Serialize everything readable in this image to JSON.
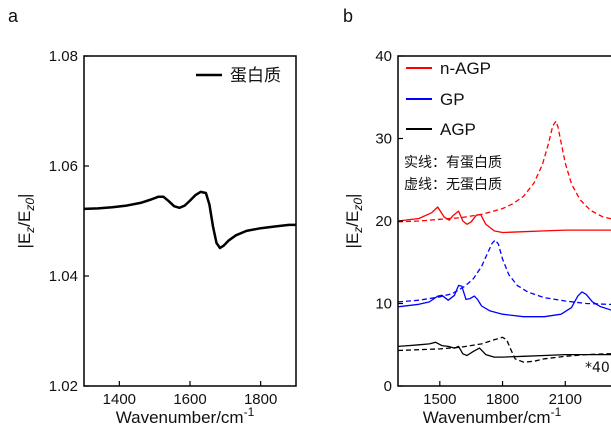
{
  "chart_data": [
    {
      "panel_label": "a",
      "type": "line",
      "xlabel": "Wavenumber/cm",
      "xlabel_sup": "-1",
      "ylabel": {
        "base1": "|E",
        "sub1": "z",
        "slash": "/E",
        "sub2": "z0",
        "end": "|"
      },
      "xlim": [
        1300,
        1900
      ],
      "ylim": [
        1.02,
        1.08
      ],
      "xticks": [
        1400,
        1600,
        1800
      ],
      "xtick_labels": [
        "1400",
        "1600",
        "1800"
      ],
      "yticks": [
        1.02,
        1.04,
        1.06,
        1.08
      ],
      "ytick_labels": [
        "1.02",
        "1.04",
        "1.06",
        "1.08"
      ],
      "legend_placement": "top-right",
      "series": [
        {
          "name": "蛋白质",
          "color": "#000000",
          "style": "solid",
          "x": [
            1300,
            1340,
            1380,
            1420,
            1460,
            1490,
            1510,
            1525,
            1540,
            1555,
            1570,
            1585,
            1600,
            1615,
            1630,
            1645,
            1655,
            1665,
            1675,
            1685,
            1695,
            1710,
            1730,
            1760,
            1800,
            1840,
            1880,
            1900
          ],
          "y": [
            1.0522,
            1.0523,
            1.0525,
            1.0528,
            1.0533,
            1.0539,
            1.0544,
            1.0544,
            1.0536,
            1.0527,
            1.0524,
            1.0528,
            1.0537,
            1.0547,
            1.0553,
            1.0551,
            1.053,
            1.049,
            1.046,
            1.0451,
            1.0455,
            1.0465,
            1.0474,
            1.0482,
            1.0487,
            1.049,
            1.0493,
            1.0493
          ]
        }
      ]
    },
    {
      "panel_label": "b",
      "type": "line",
      "xlabel": "Wavenumber/cm",
      "xlabel_sup": "-1",
      "ylabel": {
        "base1": "|E",
        "sub1": "z",
        "slash": "/E",
        "sub2": "z0",
        "end": "|"
      },
      "xlim": [
        1300,
        2400
      ],
      "ylim": [
        0,
        40
      ],
      "xticks": [
        1500,
        1800,
        2100
      ],
      "xtick_labels": [
        "1500",
        "1800",
        "2100"
      ],
      "yticks": [
        0,
        10,
        20,
        30,
        40
      ],
      "ytick_labels": [
        "0",
        "10",
        "20",
        "30",
        "40"
      ],
      "legend_placement": "top-left",
      "annotations": [
        "实线：有蛋白质",
        "虚线：无蛋白质",
        "*40"
      ],
      "series": [
        {
          "name": "n-AGP",
          "color": "#ff0000",
          "style": "solid",
          "x": [
            1300,
            1400,
            1460,
            1490,
            1520,
            1545,
            1565,
            1590,
            1610,
            1630,
            1650,
            1675,
            1695,
            1720,
            1760,
            1800,
            1900,
            2000,
            2100,
            2200,
            2300,
            2400
          ],
          "y": [
            20.0,
            20.3,
            21.0,
            21.7,
            20.5,
            20.1,
            20.7,
            21.2,
            20.0,
            19.6,
            19.9,
            20.7,
            20.8,
            19.6,
            18.8,
            18.6,
            18.7,
            18.8,
            18.9,
            18.9,
            18.9,
            18.9
          ]
        },
        {
          "name": "n-AGP 无蛋白质",
          "color": "#ff0000",
          "style": "dashed",
          "x": [
            1300,
            1400,
            1500,
            1600,
            1700,
            1800,
            1850,
            1900,
            1950,
            1990,
            2020,
            2040,
            2055,
            2065,
            2080,
            2100,
            2130,
            2170,
            2220,
            2280,
            2350,
            2400
          ],
          "y": [
            19.9,
            20.0,
            20.2,
            20.4,
            20.8,
            21.5,
            22.1,
            23.0,
            24.6,
            26.8,
            29.4,
            31.5,
            32.1,
            31.4,
            29.5,
            27.0,
            24.5,
            22.6,
            21.3,
            20.5,
            20.1,
            19.9
          ]
        },
        {
          "name": "GP",
          "color": "#0000ff",
          "style": "solid",
          "x": [
            1300,
            1400,
            1450,
            1490,
            1510,
            1540,
            1570,
            1590,
            1605,
            1625,
            1645,
            1665,
            1680,
            1700,
            1740,
            1800,
            1900,
            2000,
            2080,
            2130,
            2160,
            2180,
            2200,
            2230,
            2270,
            2320,
            2400
          ],
          "y": [
            9.6,
            9.9,
            10.2,
            10.9,
            11.0,
            10.4,
            11.0,
            12.2,
            12.1,
            10.5,
            10.6,
            10.9,
            10.5,
            9.7,
            9.1,
            8.7,
            8.4,
            8.4,
            8.7,
            9.5,
            10.9,
            11.4,
            11.1,
            10.2,
            9.6,
            9.2,
            9.0
          ]
        },
        {
          "name": "GP 无蛋白质",
          "color": "#0000ff",
          "style": "dashed",
          "x": [
            1300,
            1400,
            1500,
            1560,
            1620,
            1660,
            1700,
            1730,
            1750,
            1765,
            1780,
            1800,
            1830,
            1870,
            1920,
            2000,
            2100,
            2200,
            2300,
            2400
          ],
          "y": [
            10.2,
            10.4,
            10.8,
            11.2,
            12.1,
            13.0,
            14.5,
            16.2,
            17.3,
            17.7,
            17.2,
            15.4,
            13.5,
            12.2,
            11.4,
            10.7,
            10.3,
            10.0,
            9.9,
            9.8
          ]
        },
        {
          "name": "AGP",
          "color": "#000000",
          "style": "solid",
          "x": [
            1300,
            1350,
            1400,
            1450,
            1480,
            1510,
            1540,
            1570,
            1590,
            1610,
            1630,
            1660,
            1690,
            1720,
            1760,
            1800,
            1900,
            2000,
            2100,
            2200,
            2300,
            2400
          ],
          "y": [
            4.8,
            4.9,
            5.0,
            5.1,
            5.3,
            4.9,
            4.8,
            4.6,
            4.8,
            3.9,
            3.7,
            4.2,
            4.6,
            3.8,
            3.5,
            3.5,
            3.6,
            3.7,
            3.8,
            3.8,
            3.8,
            3.8
          ]
        },
        {
          "name": "AGP 无蛋白质",
          "color": "#000000",
          "style": "dashed",
          "x": [
            1300,
            1400,
            1500,
            1600,
            1700,
            1760,
            1800,
            1820,
            1840,
            1860,
            1900,
            1950,
            2000,
            2100,
            2200,
            2300,
            2400
          ],
          "y": [
            4.3,
            4.4,
            4.5,
            4.7,
            5.1,
            5.6,
            5.9,
            5.6,
            4.4,
            3.3,
            2.9,
            3.0,
            3.3,
            3.6,
            3.8,
            3.9,
            3.9
          ]
        }
      ]
    }
  ]
}
